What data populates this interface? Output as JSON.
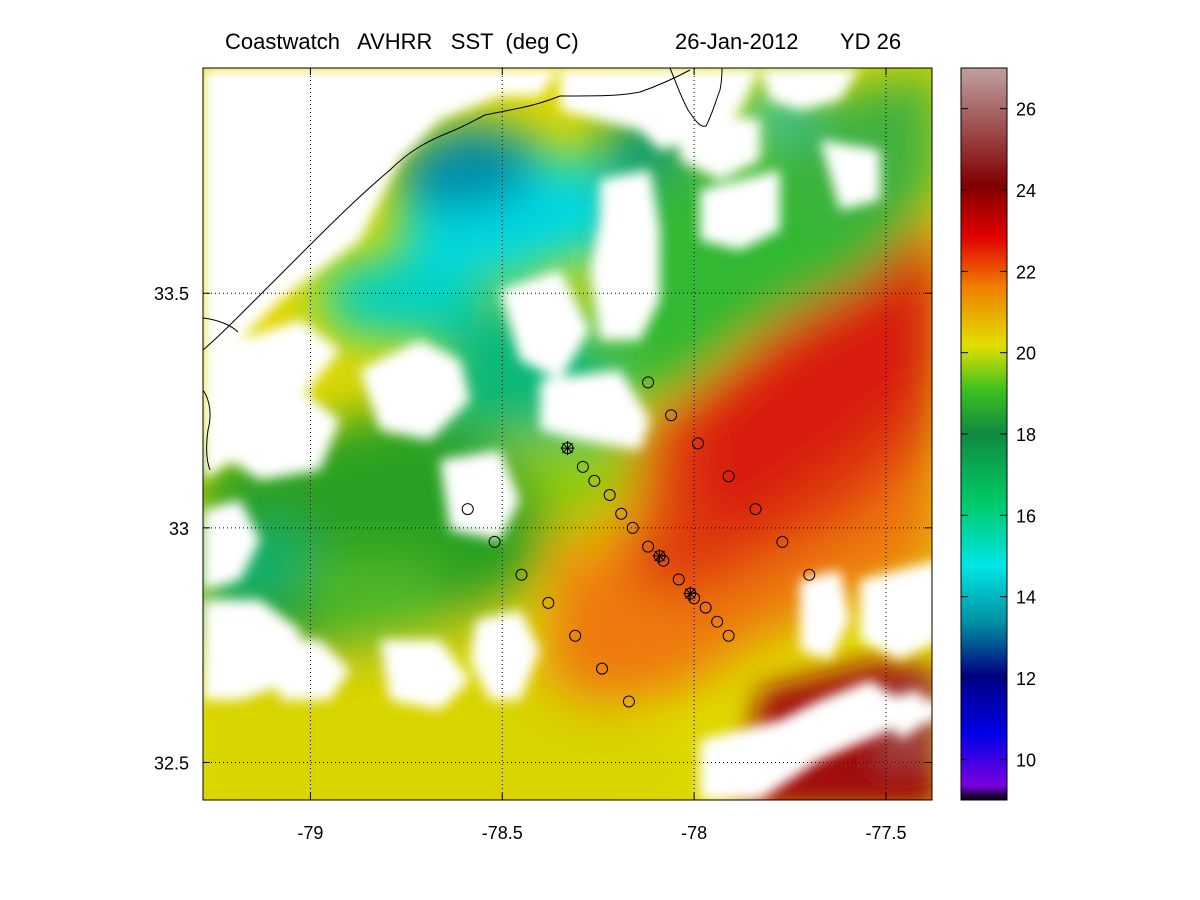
{
  "header": {
    "title": "Coastwatch   AVHRR   SST  (deg C)",
    "date": "26-Jan-2012",
    "yearday": "YD 26"
  },
  "map": {
    "lon_range": [
      -79.28,
      -77.38
    ],
    "lat_range": [
      32.42,
      33.98
    ],
    "x_ticks": [
      -79,
      -78.5,
      -78,
      -77.5
    ],
    "x_tick_labels": [
      "-79",
      "-78.5",
      "-78",
      "-77.5"
    ],
    "y_ticks": [
      32.5,
      33,
      33.5
    ],
    "y_tick_labels": [
      "32.5",
      "33",
      "33.5"
    ],
    "grid": "dotted"
  },
  "colorbar": {
    "range": [
      9,
      27
    ],
    "ticks": [
      10,
      12,
      14,
      16,
      18,
      20,
      22,
      24,
      26
    ],
    "tick_labels": [
      "10",
      "12",
      "14",
      "16",
      "18",
      "20",
      "22",
      "24",
      "26"
    ],
    "colors": [
      "#000000",
      "#7a00e0",
      "#0000e8",
      "#000080",
      "#008ca0",
      "#00e6e6",
      "#00c864",
      "#108a40",
      "#3cc020",
      "#e0e000",
      "#f08000",
      "#e00000",
      "#800000",
      "#a05050",
      "#c0a0a0"
    ]
  },
  "stations": [
    {
      "lon": -78.12,
      "lat": 33.31
    },
    {
      "lon": -78.06,
      "lat": 33.24
    },
    {
      "lon": -77.99,
      "lat": 33.18
    },
    {
      "lon": -78.33,
      "lat": 33.17,
      "marker": "star"
    },
    {
      "lon": -78.29,
      "lat": 33.13
    },
    {
      "lon": -78.26,
      "lat": 33.1
    },
    {
      "lon": -78.22,
      "lat": 33.07
    },
    {
      "lon": -78.19,
      "lat": 33.03
    },
    {
      "lon": -78.16,
      "lat": 33.0
    },
    {
      "lon": -78.12,
      "lat": 32.96
    },
    {
      "lon": -78.09,
      "lat": 32.94,
      "marker": "star"
    },
    {
      "lon": -78.08,
      "lat": 32.93
    },
    {
      "lon": -78.04,
      "lat": 32.89
    },
    {
      "lon": -78.01,
      "lat": 32.86,
      "marker": "star"
    },
    {
      "lon": -78.0,
      "lat": 32.85
    },
    {
      "lon": -77.97,
      "lat": 32.83
    },
    {
      "lon": -77.94,
      "lat": 32.8
    },
    {
      "lon": -77.91,
      "lat": 32.77
    },
    {
      "lon": -77.91,
      "lat": 33.11
    },
    {
      "lon": -77.84,
      "lat": 33.04
    },
    {
      "lon": -77.77,
      "lat": 32.97
    },
    {
      "lon": -77.7,
      "lat": 32.9
    },
    {
      "lon": -78.59,
      "lat": 33.04
    },
    {
      "lon": -78.52,
      "lat": 32.97
    },
    {
      "lon": -78.45,
      "lat": 32.9
    },
    {
      "lon": -78.38,
      "lat": 32.84
    },
    {
      "lon": -78.31,
      "lat": 32.77
    },
    {
      "lon": -78.24,
      "lat": 32.7
    },
    {
      "lon": -78.17,
      "lat": 32.63
    }
  ]
}
